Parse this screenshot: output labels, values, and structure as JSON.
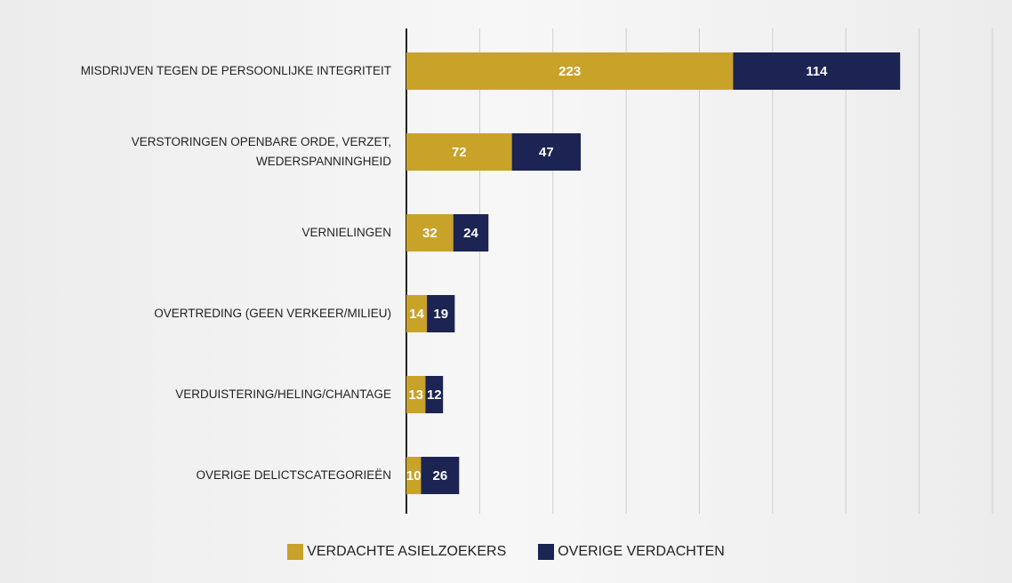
{
  "chart_data": {
    "type": "stacked_barh",
    "categories": [
      "MISDRIJVEN TEGEN DE PERSOONLIJKE INTEGRITEIT",
      "VERSTORINGEN OPENBARE ORDE, VERZET, WEDERSPANNINGHEID",
      "VERNIELINGEN",
      "OVERTREDING (GEEN VERKEER/MILIEU)",
      "VERDUISTERING/HELING/CHANTAGE",
      "OVERIGE DELICTSCATEGORIEËN"
    ],
    "series": [
      {
        "name": "VERDACHTE ASIELZOEKERS",
        "color": "#c9a22a",
        "values": [
          223,
          72,
          32,
          14,
          13,
          10
        ]
      },
      {
        "name": "OVERIGE VERDACHTEN",
        "color": "#1b2452",
        "values": [
          114,
          47,
          24,
          19,
          12,
          26
        ]
      }
    ],
    "xlim": [
      0,
      400
    ],
    "xticks": [
      0,
      50,
      100,
      150,
      200,
      250,
      300,
      350,
      400
    ],
    "grid": true,
    "legend": "bottom"
  }
}
